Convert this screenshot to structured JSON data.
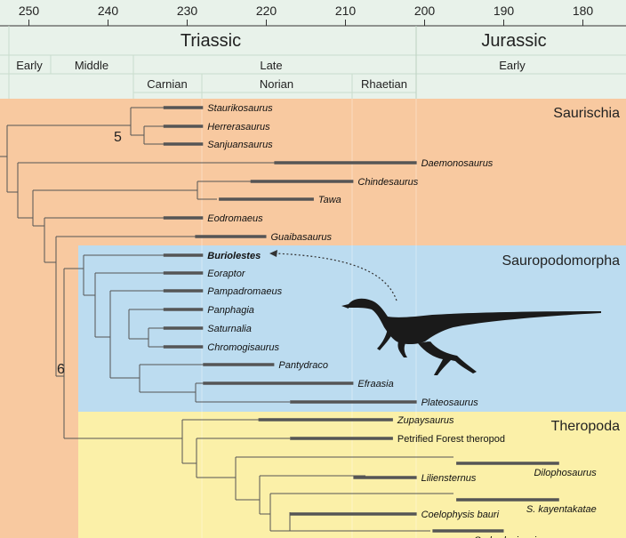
{
  "axis": {
    "ticks": [
      "250",
      "240",
      "230",
      "220",
      "210",
      "200",
      "190",
      "180"
    ]
  },
  "periods": {
    "triassic": "Triassic",
    "jurassic": "Jurassic"
  },
  "epochs": {
    "early_triassic": "Early",
    "middle_triassic": "Middle",
    "late_triassic": "Late",
    "early_jurassic": "Early"
  },
  "stages": {
    "carnian": "Carnian",
    "norian": "Norian",
    "rhaetian": "Rhaetian"
  },
  "clades": {
    "saurischia": "Saurischia",
    "sauropodomorpha": "Sauropodomorpha",
    "theropoda": "Theropoda"
  },
  "nodes": {
    "node_5": "5",
    "node_6": "6"
  },
  "colors": {
    "timescale_bg": "#e8f2ea",
    "saurischia_bg": "#f8c9a0",
    "sauropodomorpha_bg": "#bcdcf0",
    "theropoda_bg": "#fbf0a8",
    "range_bar": "#555555"
  },
  "taxa": [
    {
      "name": "Staurikosaurus",
      "first": 233,
      "last": 228
    },
    {
      "name": "Herrerasaurus",
      "first": 233,
      "last": 228
    },
    {
      "name": "Sanjuansaurus",
      "first": 233,
      "last": 228
    },
    {
      "name": "Daemonosaurus",
      "first": 219,
      "last": 201
    },
    {
      "name": "Chindesaurus",
      "first": 222,
      "last": 209
    },
    {
      "name": "Tawa",
      "first": 226,
      "last": 214
    },
    {
      "name": "Eodromaeus",
      "first": 233,
      "last": 228
    },
    {
      "name": "Guaibasaurus",
      "first": 229,
      "last": 220
    },
    {
      "name": "Buriolestes",
      "first": 233,
      "last": 228
    },
    {
      "name": "Eoraptor",
      "first": 233,
      "last": 228
    },
    {
      "name": "Pampadromaeus",
      "first": 233,
      "last": 228
    },
    {
      "name": "Panphagia",
      "first": 233,
      "last": 228
    },
    {
      "name": "Saturnalia",
      "first": 233,
      "last": 228
    },
    {
      "name": "Chromogisaurus",
      "first": 233,
      "last": 228
    },
    {
      "name": "Pantydraco",
      "first": 228,
      "last": 219
    },
    {
      "name": "Efraasia",
      "first": 228,
      "last": 209
    },
    {
      "name": "Plateosaurus",
      "first": 217,
      "last": 201
    },
    {
      "name": "Zupaysaurus",
      "first": 221,
      "last": 204
    },
    {
      "name": "Petrified Forest theropod",
      "first": 217,
      "last": 204
    },
    {
      "name": "Dilophosaurus",
      "first": 196,
      "last": 183
    },
    {
      "name": "Liliensternus",
      "first": 209,
      "last": 201
    },
    {
      "name": "S. kayentakatae",
      "first": 196,
      "last": 183
    },
    {
      "name": "Coelophysis bauri",
      "first": 217,
      "last": 201
    },
    {
      "name": "S. rhodesiensis",
      "first": 199,
      "last": 190
    }
  ]
}
